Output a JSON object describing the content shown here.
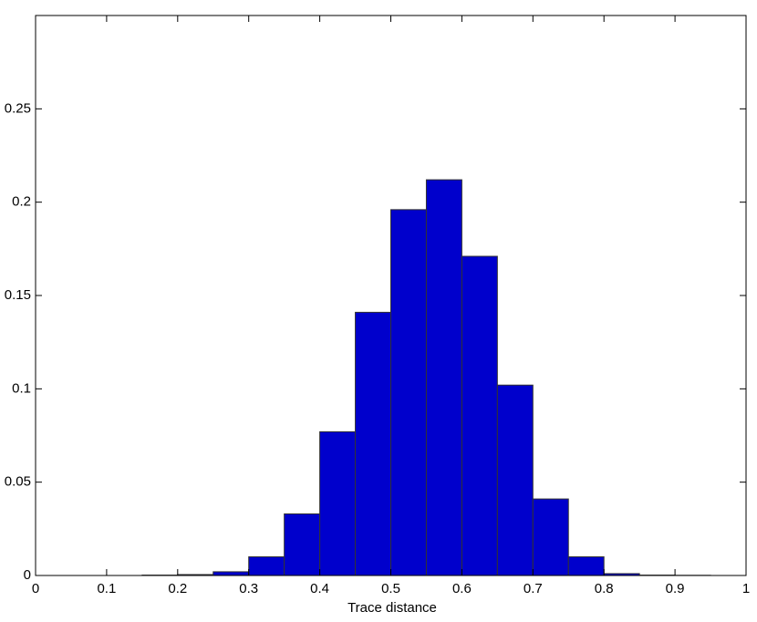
{
  "chart_data": {
    "type": "histogram",
    "xlabel": "Trace distance",
    "bins": [
      0.15,
      0.2,
      0.25,
      0.3,
      0.35,
      0.4,
      0.45,
      0.5,
      0.55,
      0.6,
      0.65,
      0.7,
      0.75,
      0.8,
      0.85,
      0.9,
      0.95
    ],
    "values": [
      0.0002,
      0.0005,
      0.002,
      0.01,
      0.033,
      0.077,
      0.141,
      0.196,
      0.212,
      0.171,
      0.102,
      0.041,
      0.01,
      0.001,
      0.0002,
      0.0001
    ],
    "color": "#0000cc",
    "xlim": [
      0,
      1
    ],
    "xticks": [
      0,
      0.1,
      0.2,
      0.3,
      0.4,
      0.5,
      0.6,
      0.7,
      0.8,
      0.9,
      1
    ],
    "ylim": [
      0,
      0.3
    ],
    "yticks": [
      0,
      0.05,
      0.1,
      0.15,
      0.2,
      0.25
    ]
  }
}
